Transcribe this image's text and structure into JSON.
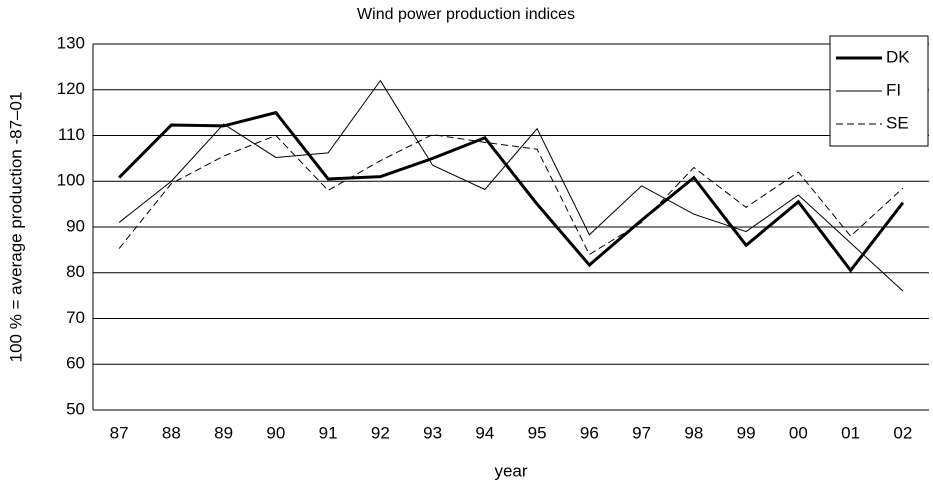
{
  "chart_data": {
    "type": "line",
    "title": "Wind power production indices",
    "xlabel": "year",
    "ylabel": "100 % = average production -87–01",
    "categories": [
      "87",
      "88",
      "89",
      "90",
      "91",
      "92",
      "93",
      "94",
      "95",
      "96",
      "97",
      "98",
      "99",
      "00",
      "01",
      "02"
    ],
    "series": [
      {
        "name": "DK",
        "color": "#000000",
        "linewidth": 3,
        "linestyle": "solid",
        "values": [
          100.8,
          112.3,
          112.1,
          115,
          100.5,
          101,
          105,
          109.5,
          95,
          81.7,
          91.5,
          100.8,
          86,
          95.5,
          80.5,
          95.3
        ]
      },
      {
        "name": "FI",
        "color": "#000000",
        "linewidth": 1,
        "linestyle": "solid",
        "values": [
          91,
          100,
          112.5,
          105.2,
          106.2,
          122,
          103.5,
          98.2,
          111.5,
          88.3,
          99,
          92.8,
          89,
          97,
          86.5,
          76
        ]
      },
      {
        "name": "SE",
        "color": "#000000",
        "linewidth": 1,
        "linestyle": "dashed",
        "values": [
          85.3,
          99.5,
          105.5,
          110,
          98,
          104.5,
          110.2,
          108.5,
          107,
          84,
          91,
          103,
          94.3,
          102,
          88,
          98.5
        ]
      }
    ],
    "ylim": [
      50,
      130
    ],
    "yticks": [
      50,
      60,
      70,
      80,
      90,
      100,
      110,
      120,
      130
    ],
    "grid": true,
    "legend": "upper right"
  }
}
